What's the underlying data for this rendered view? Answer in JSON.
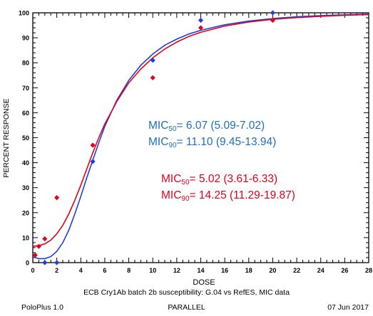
{
  "chart_data": {
    "type": "scatter",
    "xlabel": "DOSE",
    "ylabel": "PERCENT RESPONSE",
    "xlim": [
      0,
      28
    ],
    "ylim": [
      0,
      100
    ],
    "xticks": [
      0,
      2,
      4,
      6,
      8,
      10,
      12,
      14,
      16,
      18,
      20,
      22,
      24,
      26,
      28
    ],
    "yticks": [
      0,
      10,
      20,
      30,
      40,
      50,
      60,
      70,
      80,
      90,
      100
    ],
    "series": [
      {
        "color": "#1f3fe0",
        "points": [
          [
            1,
            0
          ],
          [
            2,
            0
          ],
          [
            5,
            40.5
          ],
          [
            10,
            81
          ],
          [
            14,
            97
          ],
          [
            20,
            100
          ]
        ],
        "curve": [
          [
            0,
            2.3
          ],
          [
            0.5,
            1.6
          ],
          [
            1,
            1.6
          ],
          [
            1.5,
            2.4
          ],
          [
            2,
            4.5
          ],
          [
            2.5,
            8
          ],
          [
            3,
            13
          ],
          [
            3.5,
            19.5
          ],
          [
            4,
            26.5
          ],
          [
            4.5,
            34
          ],
          [
            5,
            41
          ],
          [
            5.5,
            48
          ],
          [
            6,
            54.5
          ],
          [
            7,
            65
          ],
          [
            8,
            73
          ],
          [
            9,
            79
          ],
          [
            10,
            83.5
          ],
          [
            11,
            87
          ],
          [
            12,
            89.5
          ],
          [
            13,
            91.5
          ],
          [
            14,
            93
          ],
          [
            16,
            95.2
          ],
          [
            18,
            96.7
          ],
          [
            20,
            97.7
          ],
          [
            22,
            98.4
          ],
          [
            24,
            98.9
          ],
          [
            26,
            99.2
          ],
          [
            28,
            99.5
          ]
        ]
      },
      {
        "color": "#e3001b",
        "points": [
          [
            0.2,
            3
          ],
          [
            0.5,
            6.5
          ],
          [
            1,
            9.5
          ],
          [
            2,
            26
          ],
          [
            5,
            47
          ],
          [
            10,
            74
          ],
          [
            14,
            94
          ],
          [
            20,
            97
          ]
        ],
        "curve": [
          [
            0,
            6.5
          ],
          [
            0.5,
            6.8
          ],
          [
            1,
            7.5
          ],
          [
            1.5,
            9
          ],
          [
            2,
            11.5
          ],
          [
            2.5,
            15
          ],
          [
            3,
            19.5
          ],
          [
            3.5,
            25
          ],
          [
            4,
            31
          ],
          [
            4.5,
            37.5
          ],
          [
            5,
            44
          ],
          [
            5.5,
            50
          ],
          [
            6,
            55.5
          ],
          [
            7,
            64.5
          ],
          [
            8,
            72
          ],
          [
            9,
            77.5
          ],
          [
            10,
            82
          ],
          [
            11,
            85.5
          ],
          [
            12,
            88.3
          ],
          [
            13,
            90.5
          ],
          [
            14,
            92.2
          ],
          [
            16,
            94.7
          ],
          [
            18,
            96.3
          ],
          [
            20,
            97.4
          ],
          [
            22,
            98.1
          ],
          [
            24,
            98.6
          ],
          [
            26,
            99
          ],
          [
            28,
            99.3
          ]
        ]
      }
    ],
    "annotations": {
      "blue": {
        "color": "#1f6fc0",
        "mic50_prefix": "MIC",
        "mic50_sub": "50",
        "mic50_value": "= 6.07 (5.09-7.02)",
        "mic90_prefix": "MIC",
        "mic90_sub": "90",
        "mic90_value": "= 11.10 (9.45-13.94)"
      },
      "red": {
        "color": "#e3001b",
        "mic50_prefix": "MIC",
        "mic50_sub": "50",
        "mic50_value": "= 5.02 (3.61-6.33)",
        "mic90_prefix": "MIC",
        "mic90_sub": "90",
        "mic90_value": "= 14.25 (11.29-19.87)"
      }
    }
  },
  "footer": {
    "caption": "ECB Cry1Ab  batch 2b susceptibility: G.04 vs RefES, MIC data",
    "software": "PoloPlus 1.0",
    "mode": "PARALLEL",
    "date": "07 Jun 2017"
  }
}
